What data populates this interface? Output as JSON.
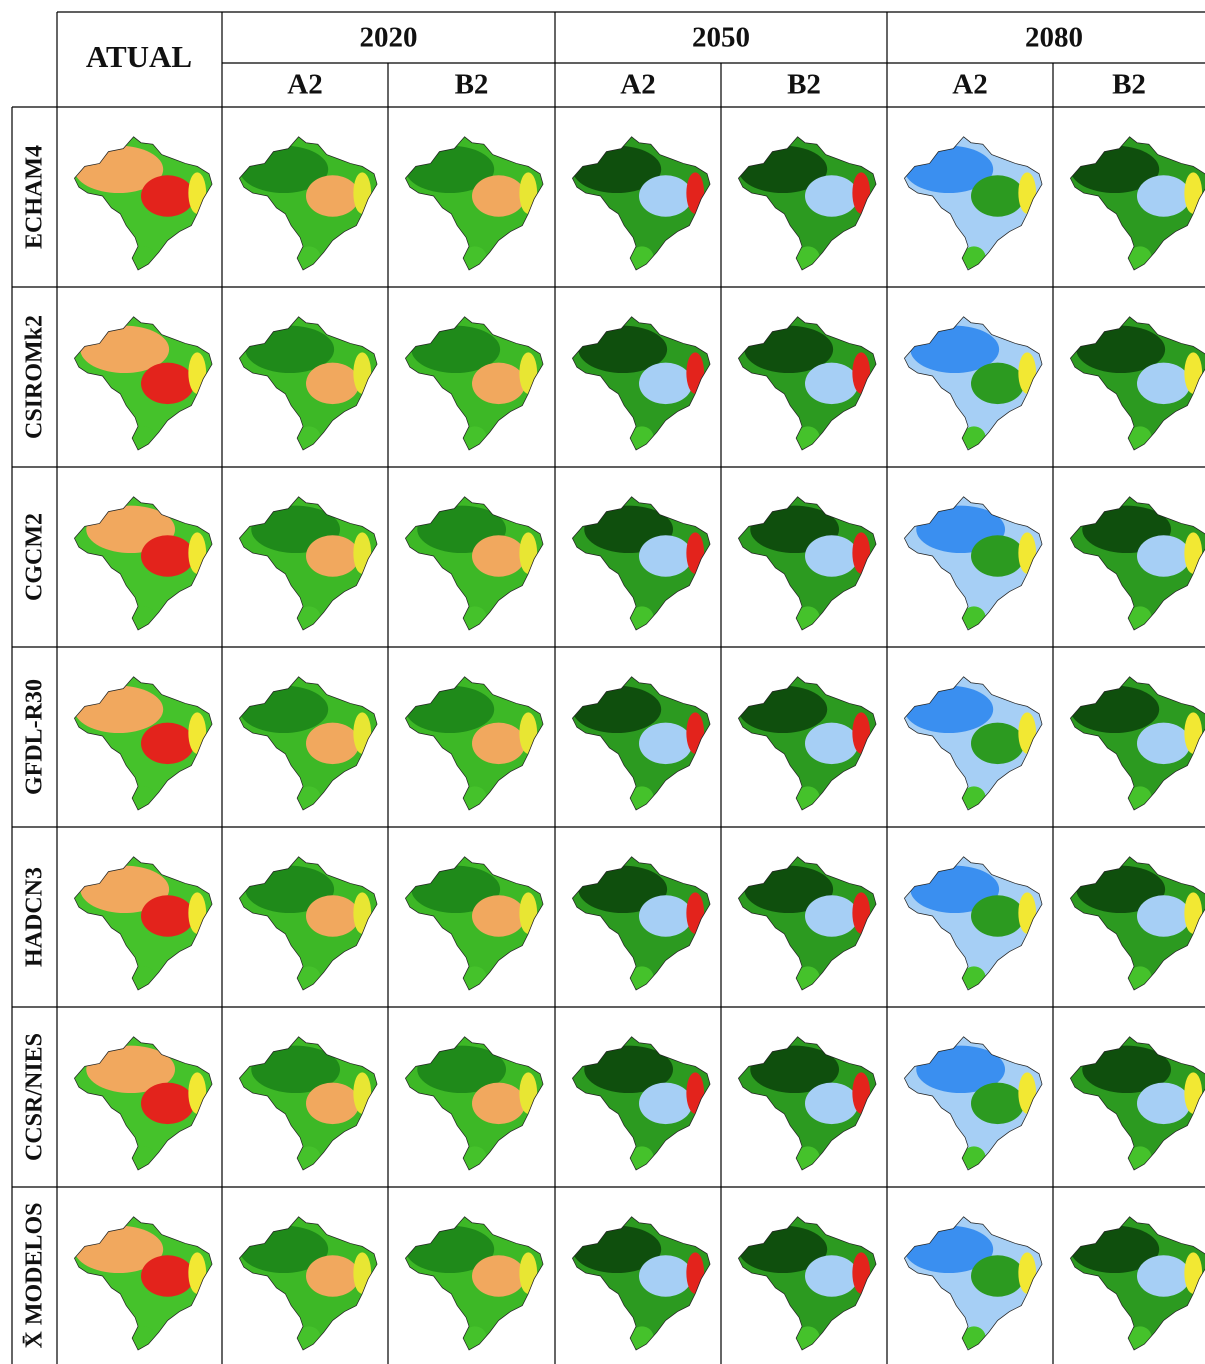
{
  "header": {
    "atual": "ATUAL",
    "years": [
      "2020",
      "2050",
      "2080"
    ],
    "scenarios": [
      "A2",
      "B2",
      "A2",
      "B2",
      "A2",
      "B2"
    ]
  },
  "rows": [
    "ECHAM4",
    "CSIROMk2",
    "CGCM2",
    "GFDL-R30",
    "HADCN3",
    "CCSR/NIES",
    "X̄ MODELOS"
  ]
}
